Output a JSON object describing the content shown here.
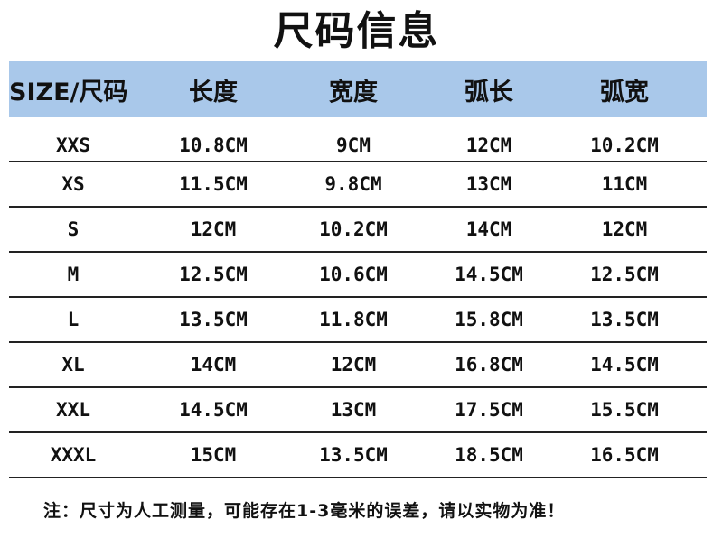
{
  "title": "尺码信息",
  "headers": [
    "SIZE/尺码",
    "长度",
    "宽度",
    "弧长",
    "弧宽"
  ],
  "rows": [
    {
      "size": "XXS",
      "length": "10.8CM",
      "width": "9CM",
      "arc_length": "12CM",
      "arc_width": "10.2CM"
    },
    {
      "size": "XS",
      "length": "11.5CM",
      "width": "9.8CM",
      "arc_length": "13CM",
      "arc_width": "11CM"
    },
    {
      "size": "S",
      "length": "12CM",
      "width": "10.2CM",
      "arc_length": "14CM",
      "arc_width": "12CM"
    },
    {
      "size": "M",
      "length": "12.5CM",
      "width": "10.6CM",
      "arc_length": "14.5CM",
      "arc_width": "12.5CM"
    },
    {
      "size": "L",
      "length": "13.5CM",
      "width": "11.8CM",
      "arc_length": "15.8CM",
      "arc_width": "13.5CM"
    },
    {
      "size": "XL",
      "length": "14CM",
      "width": "12CM",
      "arc_length": "16.8CM",
      "arc_width": "14.5CM"
    },
    {
      "size": "XXL",
      "length": "14.5CM",
      "width": "13CM",
      "arc_length": "17.5CM",
      "arc_width": "15.5CM"
    },
    {
      "size": "XXXL",
      "length": "15CM",
      "width": "13.5CM",
      "arc_length": "18.5CM",
      "arc_width": "16.5CM"
    }
  ],
  "note": "注：尺寸为人工测量，可能存在1-3毫米的误差，请以实物为准！",
  "colors": {
    "header_background": "#a9c8ea",
    "row_divider": "#222222",
    "text": "#111111"
  }
}
